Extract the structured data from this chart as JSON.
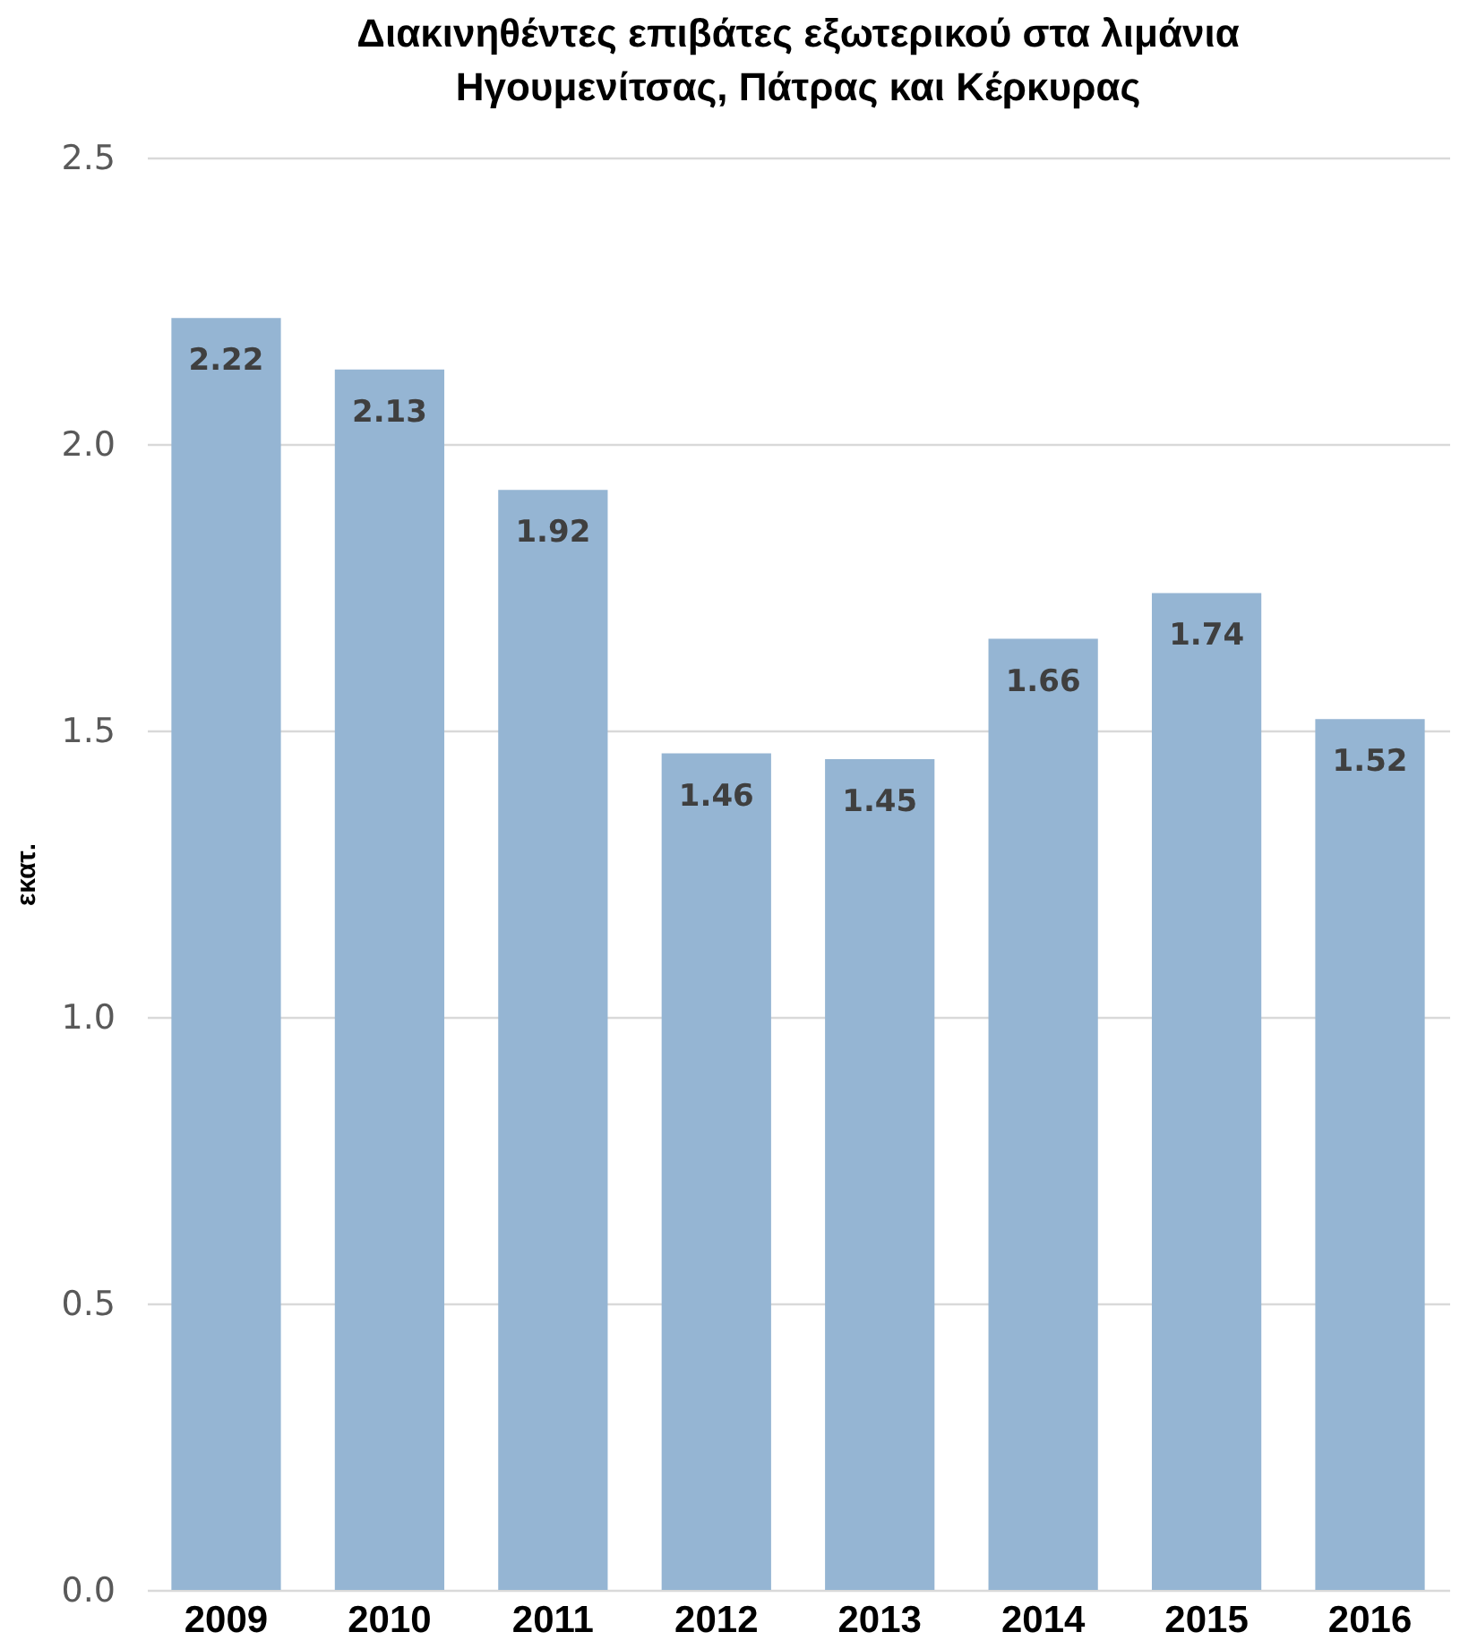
{
  "chart_data": {
    "type": "bar",
    "title": "Διακινηθέντες επιβάτες εξωτερικού στα λιμάνια Ηγουμενίτσας, Πάτρας και Κέρκυρας",
    "ylabel": "εκατ.",
    "categories": [
      "2009",
      "2010",
      "2011",
      "2012",
      "2013",
      "2014",
      "2015",
      "2016"
    ],
    "values": [
      2.22,
      2.13,
      1.92,
      1.46,
      1.45,
      1.66,
      1.74,
      1.52
    ],
    "color": "#95b5d3",
    "ylim": [
      0,
      2.5
    ],
    "yticks": [
      {
        "value": 0,
        "label": "0.0"
      },
      0.5,
      {
        "value": 1,
        "label": "1.0"
      },
      1.5,
      {
        "value": 2,
        "label": "2.0"
      },
      2.5
    ],
    "grid": "y",
    "data_labels": true
  }
}
